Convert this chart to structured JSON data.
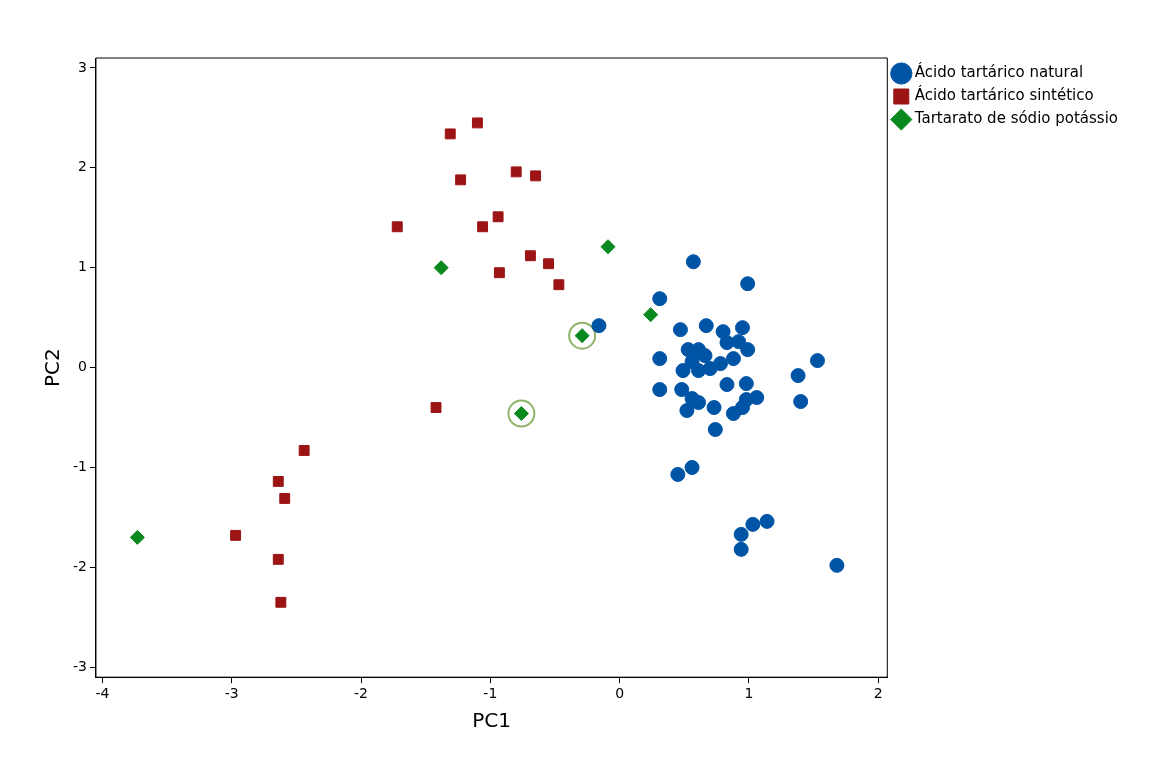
{
  "chart_data": {
    "type": "scatter",
    "xlabel": "PC1",
    "ylabel": "PC2",
    "xlim": [
      -4.05,
      2.07
    ],
    "ylim": [
      -3.1,
      3.1
    ],
    "xticks": [
      -4,
      -3,
      -2,
      -1,
      0,
      1,
      2
    ],
    "yticks": [
      -3,
      -2,
      -1,
      0,
      1,
      2,
      3
    ],
    "grid": false,
    "legend": "top right",
    "series": [
      {
        "name": "Ácido tartárico natural",
        "color": "#0054a6",
        "marker": "circle",
        "x": [
          0.57,
          0.99,
          0.31,
          -0.16,
          0.47,
          0.67,
          0.8,
          0.95,
          0.53,
          0.61,
          0.66,
          0.83,
          0.92,
          0.99,
          0.88,
          0.31,
          0.56,
          0.78,
          0.49,
          0.61,
          0.7,
          1.53,
          1.38,
          0.31,
          0.48,
          0.83,
          0.98,
          0.56,
          1.06,
          0.98,
          1.4,
          0.61,
          0.73,
          0.52,
          0.95,
          0.88,
          0.74,
          0.56,
          0.45,
          1.14,
          1.03,
          0.94,
          0.94,
          1.68
        ],
        "values": [
          1.06,
          0.84,
          0.69,
          0.42,
          0.38,
          0.42,
          0.36,
          0.4,
          0.18,
          0.18,
          0.12,
          0.25,
          0.26,
          0.18,
          0.09,
          0.09,
          0.06,
          0.04,
          -0.03,
          -0.03,
          -0.01,
          0.07,
          -0.08,
          -0.22,
          -0.22,
          -0.17,
          -0.16,
          -0.31,
          -0.3,
          -0.32,
          -0.34,
          -0.35,
          -0.4,
          -0.43,
          -0.4,
          -0.46,
          -0.62,
          -1,
          -1.07,
          -1.54,
          -1.57,
          -1.67,
          -1.82,
          -1.98
        ]
      },
      {
        "name": "Ácido tartárico sintético",
        "color": "#9c1414",
        "marker": "square",
        "x": [
          -1.1,
          -1.31,
          -1.23,
          -0.8,
          -0.65,
          -1.72,
          -0.94,
          -1.06,
          -0.69,
          -0.55,
          -0.93,
          -0.47,
          -1.42,
          -2.44,
          -2.64,
          -2.59,
          -2.97,
          -2.64,
          -2.62
        ],
        "values": [
          2.45,
          2.34,
          1.88,
          1.96,
          1.92,
          1.41,
          1.51,
          1.41,
          1.12,
          1.04,
          0.95,
          0.83,
          -0.4,
          -0.83,
          -1.14,
          -1.31,
          -1.68,
          -1.92,
          -2.35
        ]
      },
      {
        "name": "Tartarato de sódio potássio",
        "color": "#0a8a1e",
        "marker": "diamond",
        "x": [
          -3.73,
          -1.38,
          -0.09,
          -0.29,
          -0.76,
          0.24
        ],
        "values": [
          -1.7,
          1,
          1.21,
          0.32,
          -0.46,
          0.53
        ]
      },
      {
        "color": "#8fb36a",
        "marker": "circle",
        "x": [
          -0.29,
          -0.76
        ],
        "values": [
          0.32,
          -0.46
        ]
      }
    ]
  }
}
